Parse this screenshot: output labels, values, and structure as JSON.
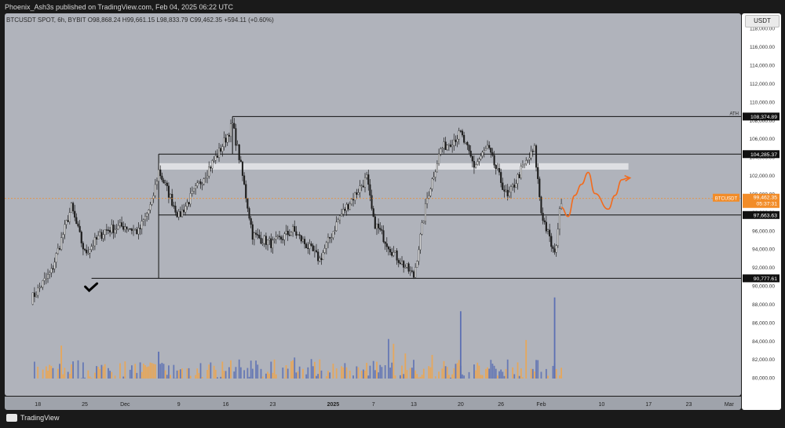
{
  "header": {
    "publisher_line": "Phoenix_Ash3s published on TradingView.com, Feb 04, 2025 06:22 UTC"
  },
  "legend": {
    "symbol_line": "BTCUSDT SPOT, 6h, BYBIT",
    "open": "O98,868.24",
    "high": "H99,661.15",
    "low": "L98,833.79",
    "close": "C99,462.35",
    "change": "+594.11 (+0.60%)"
  },
  "axis_currency": "USDT",
  "footer": {
    "brand": "TradingView"
  },
  "colors": {
    "plot_bg": "#b0b3bb",
    "up": "#d8d8d8",
    "down": "#1c1c1c",
    "projection": "#f26b1d",
    "price_tag": "#f28c28",
    "volume_up": "#f0a54a",
    "volume_down": "#5b6fb3"
  },
  "chart_data": {
    "type": "line",
    "title": "BTCUSDT SPOT, 6h, BYBIT",
    "x": [
      "2024-11-17",
      "2024-11-20",
      "2024-11-23",
      "2024-11-25",
      "2024-11-28",
      "2024-12-01",
      "2024-12-03",
      "2024-12-05",
      "2024-12-06",
      "2024-12-09",
      "2024-12-12",
      "2024-12-15",
      "2024-12-17",
      "2024-12-18",
      "2024-12-20",
      "2024-12-23",
      "2024-12-26",
      "2024-12-30",
      "2025-01-02",
      "2025-01-06",
      "2025-01-07",
      "2025-01-10",
      "2025-01-13",
      "2025-01-15",
      "2025-01-17",
      "2025-01-20",
      "2025-01-22",
      "2025-01-24",
      "2025-01-27",
      "2025-01-29",
      "2025-01-31",
      "2025-02-01",
      "2025-02-03",
      "2025-02-04"
    ],
    "series": [
      {
        "values": [
          88500,
          91500,
          98500,
          93500,
          96000,
          96500,
          95800,
          99000,
          102500,
          97500,
          101000,
          104500,
          107500,
          104000,
          95500,
          94500,
          96000,
          92800,
          97500,
          101700,
          97000,
          93500,
          91000,
          99500,
          104800,
          106500,
          103000,
          105000,
          99500,
          102500,
          104800,
          98000,
          93200,
          99462
        ]
      }
    ],
    "projection": {
      "x": [
        "2025-02-04",
        "2025-02-05",
        "2025-02-06",
        "2025-02-07",
        "2025-02-08",
        "2025-02-09",
        "2025-02-11",
        "2025-02-12",
        "2025-02-13",
        "2025-02-14"
      ],
      "values": [
        98500,
        97500,
        99800,
        101000,
        102300,
        100000,
        98300,
        99800,
        101500,
        101700
      ]
    },
    "volume": {
      "highlight_spikes": [
        {
          "x": "2024-12-06",
          "value": 82800
        },
        {
          "x": "2025-01-20",
          "value": 87200
        },
        {
          "x": "2025-02-03",
          "value": 88700
        }
      ]
    },
    "horizontal_levels": [
      {
        "value": 108374.89,
        "label": "108,374.89",
        "note": "ATH"
      },
      {
        "value": 104285.37,
        "label": "104,285.37"
      },
      {
        "value": 97663.63,
        "label": "97,663.63"
      },
      {
        "value": 90777.61,
        "label": "90,777.61"
      }
    ],
    "resistance_zone": [
      102600,
      103300
    ],
    "last_price": {
      "symbol": "BTCUSDT",
      "value": "99,462.35",
      "countdown": "05:37:31"
    },
    "checkmark_x": "2024-11-26",
    "yticks": [
      "118,000.00",
      "116,000.00",
      "114,000.00",
      "112,000.00",
      "110,000.00",
      "108,000.00",
      "106,000.00",
      "104,000.00",
      "102,000.00",
      "100,000.00",
      "98,000.00",
      "96,000.00",
      "94,000.00",
      "92,000.00",
      "90,000.00",
      "88,000.00",
      "86,000.00",
      "84,000.00",
      "82,000.00",
      "80,000.00"
    ],
    "xticks": [
      "18",
      "25",
      "Dec",
      "9",
      "16",
      "23",
      "2025",
      "7",
      "13",
      "20",
      "26",
      "Feb",
      "10",
      "17",
      "23",
      "Mar"
    ],
    "ylim": [
      78000,
      119600
    ]
  }
}
